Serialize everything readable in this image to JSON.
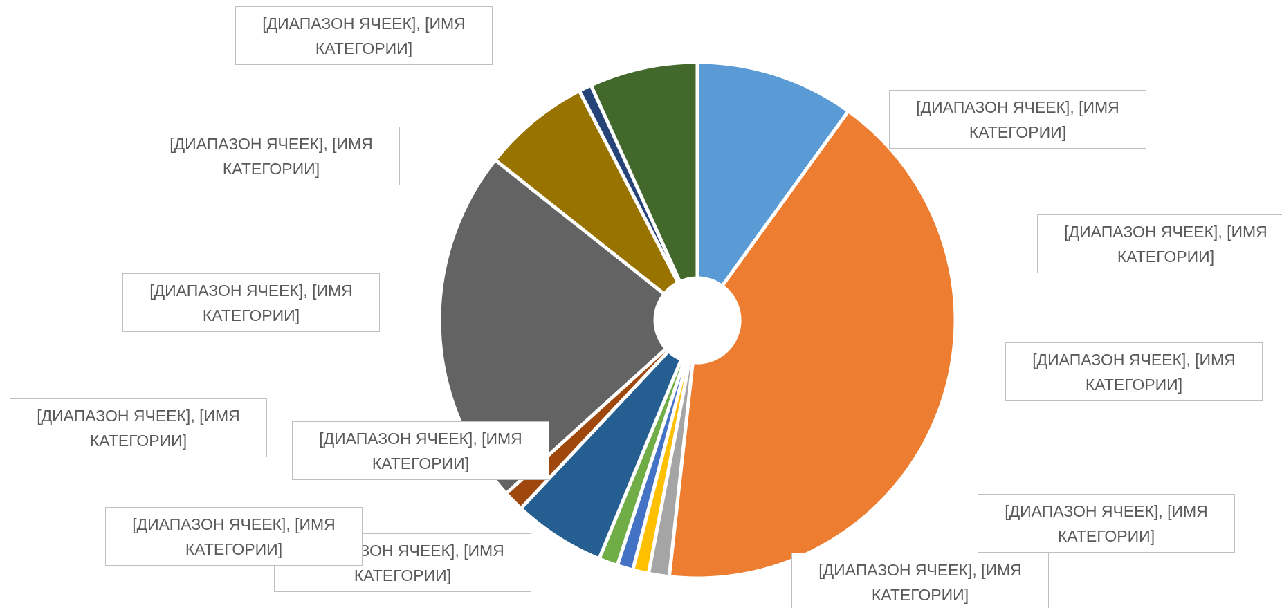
{
  "chart_data": {
    "type": "doughnut",
    "values": [
      10,
      42,
      1.3,
      1,
      1,
      1.2,
      5.8,
      1.3,
      22.5,
      6.8,
      0.8,
      6.8
    ],
    "colors": [
      "#5b9bd5",
      "#ed7d31",
      "#a5a5a5",
      "#ffc000",
      "#4472c4",
      "#70ad47",
      "#255e91",
      "#9e480e",
      "#636363",
      "#997300",
      "#264478",
      "#43682b"
    ],
    "data_labels": [
      "[ДИАПАЗОН ЯЧЕЕК], [ИМЯ КАТЕГОРИИ]",
      "[ДИАПАЗОН ЯЧЕЕК], [ИМЯ КАТЕГОРИИ]",
      "[ДИАПАЗОН ЯЧЕЕК], [ИМЯ КАТЕГОРИИ]",
      "[ДИАПАЗОН ЯЧЕЕК], [ИМЯ КАТЕГОРИИ]",
      "[ДИАПАЗОН ЯЧЕЕК], [ИМЯ КАТЕГОРИИ]",
      "[ДИАПАЗОН ЯЧЕЕК], [ИМЯ КАТЕГОРИИ]",
      "[ДИАПАЗОН ЯЧЕЕК], [ИМЯ КАТЕГОРИИ]",
      "[ДИАПАЗОН ЯЧЕЕК], [ИМЯ КАТЕГОРИИ]",
      "[ДИАПАЗОН ЯЧЕЕК], [ИМЯ КАТЕГОРИИ]",
      "[ДИАПАЗОН ЯЧЕЕК], [ИМЯ КАТЕГОРИИ]",
      "[ДИАПАЗОН ЯЧЕЕК], [ИМЯ КАТЕГОРИИ]",
      "[ДИАПАЗОН ЯЧЕЕК], [ИМЯ КАТЕГОРИИ]"
    ]
  }
}
